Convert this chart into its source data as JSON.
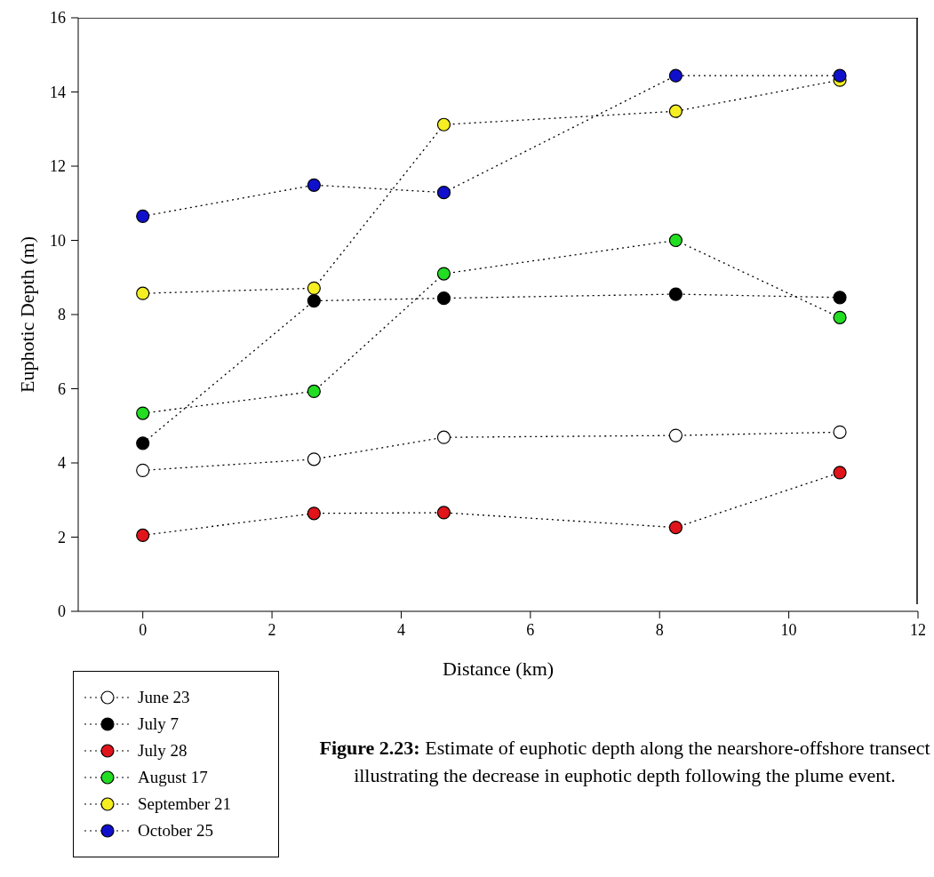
{
  "chart_data": {
    "type": "line",
    "xlabel": "Distance (km)",
    "ylabel": "Euphotic Depth (m)",
    "x": [
      0,
      2.65,
      4.66,
      8.25,
      10.79
    ],
    "xlim": [
      -1,
      12
    ],
    "xticks": [
      0,
      2,
      4,
      6,
      8,
      10,
      12
    ],
    "ylim": [
      0,
      16
    ],
    "yticks": [
      0,
      2,
      4,
      6,
      8,
      10,
      12,
      14,
      16
    ],
    "grid": false,
    "legend": "bottom left",
    "marker": "circle",
    "line_style": "dotted",
    "series": [
      {
        "name": "June 23",
        "color": "#ffffff",
        "values": [
          3.8,
          4.1,
          4.69,
          4.74,
          4.83
        ]
      },
      {
        "name": "July 7",
        "color": "#000000",
        "values": [
          4.53,
          8.37,
          8.44,
          8.55,
          8.46
        ]
      },
      {
        "name": "July 28",
        "color": "#e0141a",
        "values": [
          2.05,
          2.64,
          2.66,
          2.26,
          3.74
        ]
      },
      {
        "name": "August 17",
        "color": "#22dd22",
        "values": [
          5.34,
          5.93,
          9.1,
          10.0,
          7.92
        ]
      },
      {
        "name": "September 21",
        "color": "#f5ee22",
        "values": [
          8.57,
          8.71,
          13.12,
          13.48,
          14.32
        ]
      },
      {
        "name": "October 25",
        "color": "#1010cc",
        "values": [
          10.65,
          11.49,
          11.29,
          14.44,
          14.44
        ]
      }
    ],
    "annotations": [
      "Figure 2.23: Estimate of euphotic depth along the nearshore-offshore transect illustrating the decrease in euphotic depth following the plume event."
    ]
  }
}
